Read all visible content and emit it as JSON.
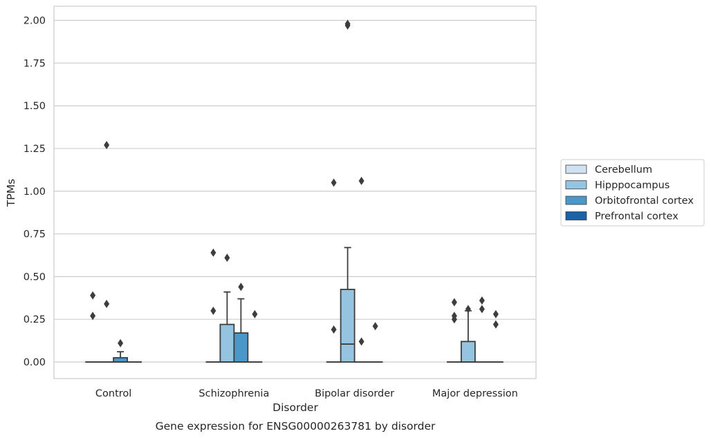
{
  "chart_data": {
    "type": "box",
    "caption": "Gene expression for ENSG00000263781 by disorder",
    "xlabel": "Disorder",
    "ylabel": "TPMs",
    "ylim": [
      -0.1,
      2.08
    ],
    "yticks": [
      "0.00",
      "0.25",
      "0.50",
      "0.75",
      "1.00",
      "1.25",
      "1.50",
      "1.75",
      "2.00"
    ],
    "ytick_values": [
      0,
      0.25,
      0.5,
      0.75,
      1.0,
      1.25,
      1.5,
      1.75,
      2.0
    ],
    "grid": "horizontal",
    "legend_position": "right",
    "categories": [
      "Control",
      "Schizophrenia",
      "Bipolar disorder",
      "Major depression"
    ],
    "series": [
      {
        "name": "Cerebellum",
        "color": "#d0e1f2",
        "boxes": [
          {
            "q1": 0,
            "median": 0,
            "q3": 0,
            "whisker_low": 0,
            "whisker_high": 0,
            "outliers": [
              0.27,
              0.39
            ]
          },
          {
            "q1": 0,
            "median": 0,
            "q3": 0,
            "whisker_low": 0,
            "whisker_high": 0,
            "outliers": [
              0.3,
              0.64
            ]
          },
          {
            "q1": 0,
            "median": 0,
            "q3": 0,
            "whisker_low": 0,
            "whisker_high": 0,
            "outliers": [
              0.19,
              1.05
            ]
          },
          {
            "q1": 0,
            "median": 0,
            "q3": 0,
            "whisker_low": 0,
            "whisker_high": 0,
            "outliers": [
              0.25,
              0.27,
              0.35
            ]
          }
        ]
      },
      {
        "name": "Hipppocampus",
        "color": "#94c4df",
        "boxes": [
          {
            "q1": 0,
            "median": 0,
            "q3": 0,
            "whisker_low": 0,
            "whisker_high": 0,
            "outliers": [
              0.34,
              1.27
            ]
          },
          {
            "q1": 0,
            "median": 0,
            "q3": 0.22,
            "whisker_low": 0,
            "whisker_high": 0.41,
            "outliers": [
              0.61
            ]
          },
          {
            "q1": 0,
            "median": 0.105,
            "q3": 0.425,
            "whisker_low": 0,
            "whisker_high": 0.67,
            "outliers": [
              1.97,
              1.98
            ]
          },
          {
            "q1": 0,
            "median": 0,
            "q3": 0.12,
            "whisker_low": 0,
            "whisker_high": 0.3,
            "outliers": [
              0.31
            ]
          }
        ]
      },
      {
        "name": "Orbitofrontal cortex",
        "color": "#4a98c9",
        "boxes": [
          {
            "q1": 0,
            "median": 0,
            "q3": 0.025,
            "whisker_low": 0,
            "whisker_high": 0.06,
            "outliers": [
              0.11
            ]
          },
          {
            "q1": 0,
            "median": 0,
            "q3": 0.17,
            "whisker_low": 0,
            "whisker_high": 0.37,
            "outliers": [
              0.44
            ]
          },
          {
            "q1": 0,
            "median": 0,
            "q3": 0,
            "whisker_low": 0,
            "whisker_high": 0,
            "outliers": [
              0.12,
              1.06
            ]
          },
          {
            "q1": 0,
            "median": 0,
            "q3": 0,
            "whisker_low": 0,
            "whisker_high": 0,
            "outliers": [
              0.31,
              0.36
            ]
          }
        ]
      },
      {
        "name": "Prefrontal cortex",
        "color": "#1764ab",
        "boxes": [
          {
            "q1": 0,
            "median": 0,
            "q3": 0,
            "whisker_low": 0,
            "whisker_high": 0,
            "outliers": []
          },
          {
            "q1": 0,
            "median": 0,
            "q3": 0,
            "whisker_low": 0,
            "whisker_high": 0,
            "outliers": [
              0.28
            ]
          },
          {
            "q1": 0,
            "median": 0,
            "q3": 0,
            "whisker_low": 0,
            "whisker_high": 0,
            "outliers": [
              0.21
            ]
          },
          {
            "q1": 0,
            "median": 0,
            "q3": 0,
            "whisker_low": 0,
            "whisker_high": 0,
            "outliers": [
              0.22,
              0.28
            ]
          }
        ]
      }
    ]
  }
}
